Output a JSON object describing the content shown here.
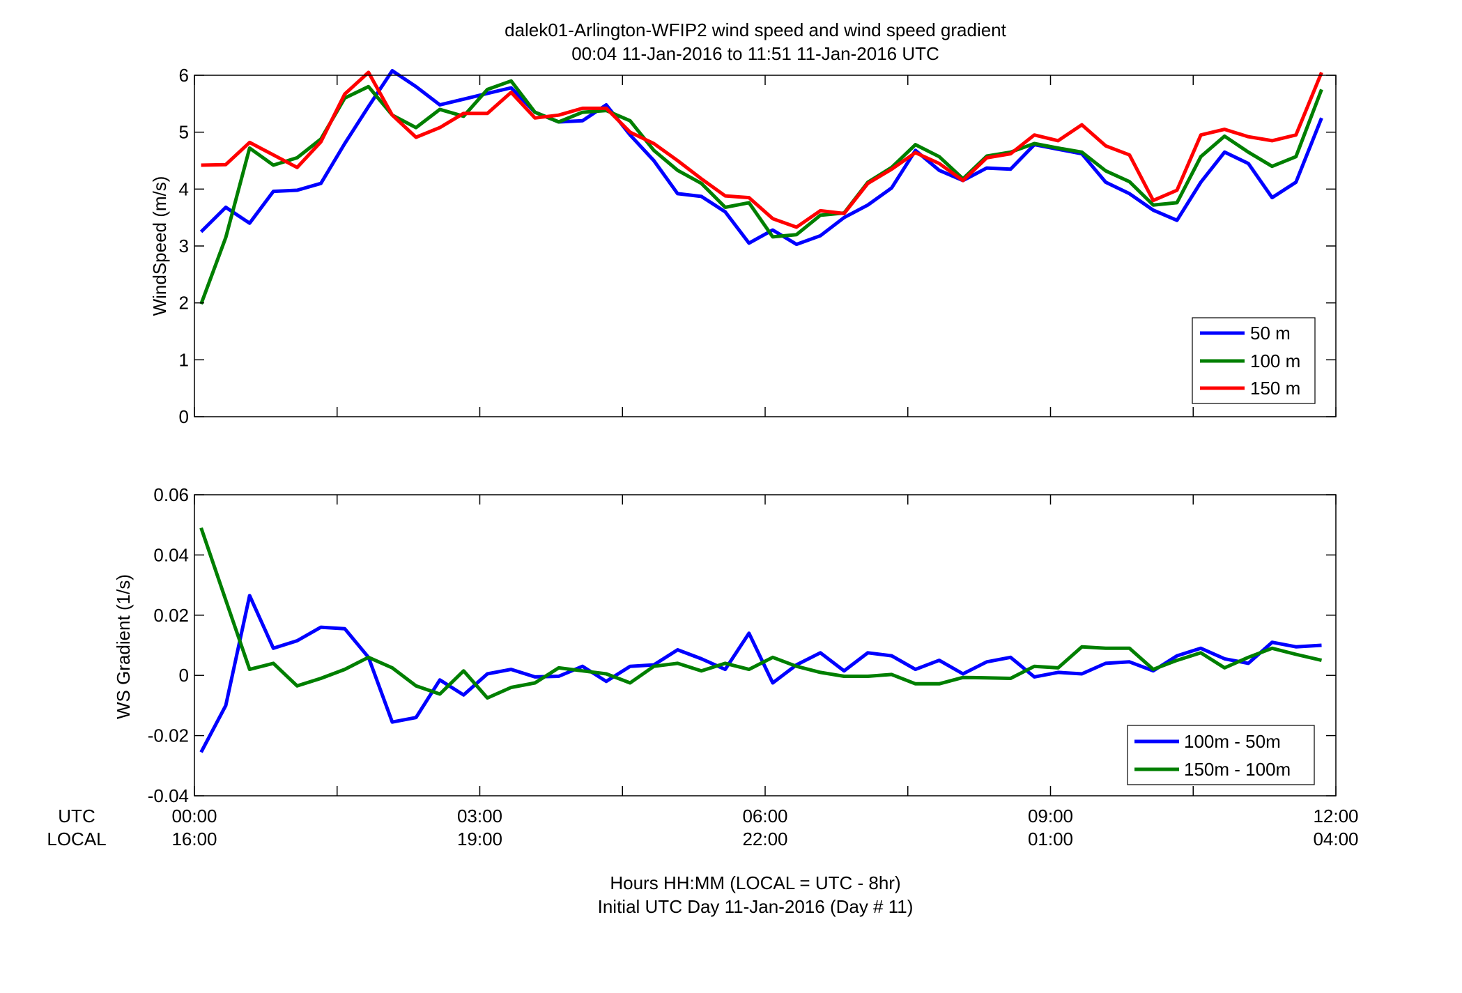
{
  "figure": {
    "title_line1": "dalek01-Arlington-WFIP2  wind speed and wind speed gradient",
    "title_line2": "00:04 11-Jan-2016 to 11:51 11-Jan-2016  UTC",
    "xlabel_line1": "Hours HH:MM  (LOCAL = UTC - 8hr)",
    "xlabel_line2": "Initial UTC Day 11-Jan-2016 (Day # 11)",
    "row_label_utc": "UTC",
    "row_label_local": "LOCAL",
    "x_ticks_utc": [
      "00:00",
      "03:00",
      "06:00",
      "09:00",
      "12:00"
    ],
    "x_ticks_local": [
      "16:00",
      "19:00",
      "22:00",
      "01:00",
      "04:00"
    ]
  },
  "chart_data": [
    {
      "type": "line",
      "title": "",
      "xlabel": "",
      "ylabel": "WindSpeed (m/s)",
      "xlim": [
        0,
        12
      ],
      "ylim": [
        0,
        6
      ],
      "yticks": [
        "0",
        "1",
        "2",
        "3",
        "4",
        "5",
        "6"
      ],
      "legend_position": "bottom-right",
      "grid": false,
      "x": [
        0.07,
        0.33,
        0.58,
        0.83,
        1.08,
        1.33,
        1.58,
        1.83,
        2.08,
        2.33,
        2.58,
        2.83,
        3.08,
        3.33,
        3.58,
        3.83,
        4.08,
        4.33,
        4.58,
        4.83,
        5.08,
        5.33,
        5.58,
        5.83,
        6.08,
        6.33,
        6.58,
        6.83,
        7.08,
        7.33,
        7.58,
        7.83,
        8.08,
        8.33,
        8.58,
        8.83,
        9.08,
        9.33,
        9.58,
        9.83,
        10.08,
        10.33,
        10.58,
        10.83,
        11.08,
        11.33,
        11.58,
        11.85
      ],
      "series": [
        {
          "name": "50 m",
          "color": "#0000ff",
          "values": [
            3.25,
            3.68,
            3.4,
            3.96,
            3.98,
            4.1,
            4.8,
            5.45,
            6.08,
            5.8,
            5.48,
            5.58,
            5.68,
            5.78,
            5.35,
            5.18,
            5.2,
            5.48,
            4.95,
            4.5,
            3.92,
            3.87,
            3.6,
            3.05,
            3.28,
            3.03,
            3.18,
            3.5,
            3.72,
            4.02,
            4.68,
            4.33,
            4.15,
            4.37,
            4.35,
            4.78,
            4.7,
            4.62,
            4.12,
            3.92,
            3.63,
            3.45,
            4.12,
            4.65,
            4.45,
            3.85,
            4.12,
            5.25
          ]
        },
        {
          "name": "100 m",
          "color": "#007f00",
          "values": [
            1.98,
            3.15,
            4.72,
            4.42,
            4.55,
            4.88,
            5.6,
            5.8,
            5.3,
            5.08,
            5.4,
            5.28,
            5.75,
            5.9,
            5.35,
            5.18,
            5.35,
            5.38,
            5.2,
            4.68,
            4.33,
            4.1,
            3.68,
            3.76,
            3.16,
            3.2,
            3.54,
            3.58,
            4.12,
            4.38,
            4.78,
            4.57,
            4.18,
            4.58,
            4.65,
            4.8,
            4.72,
            4.65,
            4.32,
            4.13,
            3.72,
            3.76,
            4.57,
            4.93,
            4.65,
            4.4,
            4.57,
            5.75
          ]
        },
        {
          "name": "150 m",
          "color": "#ff0000",
          "values": [
            4.42,
            4.43,
            4.82,
            4.6,
            4.38,
            4.83,
            5.67,
            6.05,
            5.3,
            4.91,
            5.08,
            5.33,
            5.33,
            5.7,
            5.25,
            5.3,
            5.42,
            5.42,
            5.0,
            4.8,
            4.5,
            4.18,
            3.88,
            3.85,
            3.48,
            3.33,
            3.62,
            3.57,
            4.1,
            4.35,
            4.64,
            4.45,
            4.15,
            4.55,
            4.62,
            4.95,
            4.85,
            5.13,
            4.76,
            4.6,
            3.8,
            3.98,
            4.95,
            5.05,
            4.92,
            4.85,
            4.95,
            6.05
          ]
        }
      ]
    },
    {
      "type": "line",
      "title": "",
      "xlabel": "",
      "ylabel": "WS Gradient (1/s)",
      "xlim": [
        0,
        12
      ],
      "ylim": [
        -0.04,
        0.06
      ],
      "yticks": [
        "-0.04",
        "-0.02",
        "0",
        "0.02",
        "0.04",
        "0.06"
      ],
      "legend_position": "bottom-right",
      "grid": false,
      "x": [
        0.07,
        0.33,
        0.58,
        0.83,
        1.08,
        1.33,
        1.58,
        1.83,
        2.08,
        2.33,
        2.58,
        2.83,
        3.08,
        3.33,
        3.58,
        3.83,
        4.08,
        4.33,
        4.58,
        4.83,
        5.08,
        5.33,
        5.58,
        5.83,
        6.08,
        6.33,
        6.58,
        6.83,
        7.08,
        7.33,
        7.58,
        7.83,
        8.08,
        8.33,
        8.58,
        8.83,
        9.08,
        9.33,
        9.58,
        9.83,
        10.08,
        10.33,
        10.58,
        10.83,
        11.08,
        11.33,
        11.58,
        11.85
      ],
      "series": [
        {
          "name": "100m - 50m",
          "color": "#0000ff",
          "values": [
            -0.0255,
            -0.01,
            0.0265,
            0.009,
            0.0115,
            0.016,
            0.0155,
            0.006,
            -0.0155,
            -0.014,
            -0.0015,
            -0.0065,
            0.0005,
            0.002,
            -0.0005,
            -0.0003,
            0.003,
            -0.002,
            0.003,
            0.0035,
            0.0085,
            0.0055,
            0.002,
            0.014,
            -0.0025,
            0.0035,
            0.0075,
            0.0015,
            0.0075,
            0.0065,
            0.002,
            0.005,
            0.0005,
            0.0045,
            0.006,
            -0.0005,
            0.001,
            0.0005,
            0.004,
            0.0045,
            0.0015,
            0.0065,
            0.009,
            0.0055,
            0.004,
            0.011,
            0.0095,
            0.01
          ]
        },
        {
          "name": "150m - 100m",
          "color": "#007f00",
          "values": [
            0.049,
            0.025,
            0.002,
            0.004,
            -0.0035,
            -0.001,
            0.002,
            0.006,
            0.0025,
            -0.0035,
            -0.0062,
            0.0015,
            -0.0075,
            -0.004,
            -0.0025,
            0.0025,
            0.0015,
            0.0005,
            -0.0025,
            0.003,
            0.004,
            0.0015,
            0.004,
            0.002,
            0.006,
            0.003,
            0.001,
            -0.0003,
            -0.0003,
            0.0003,
            -0.0028,
            -0.0028,
            -0.0007,
            -0.0008,
            -0.001,
            0.003,
            0.0025,
            0.0095,
            0.009,
            0.009,
            0.002,
            0.005,
            0.0075,
            0.0025,
            0.006,
            0.009,
            0.007,
            0.005
          ]
        }
      ]
    }
  ]
}
